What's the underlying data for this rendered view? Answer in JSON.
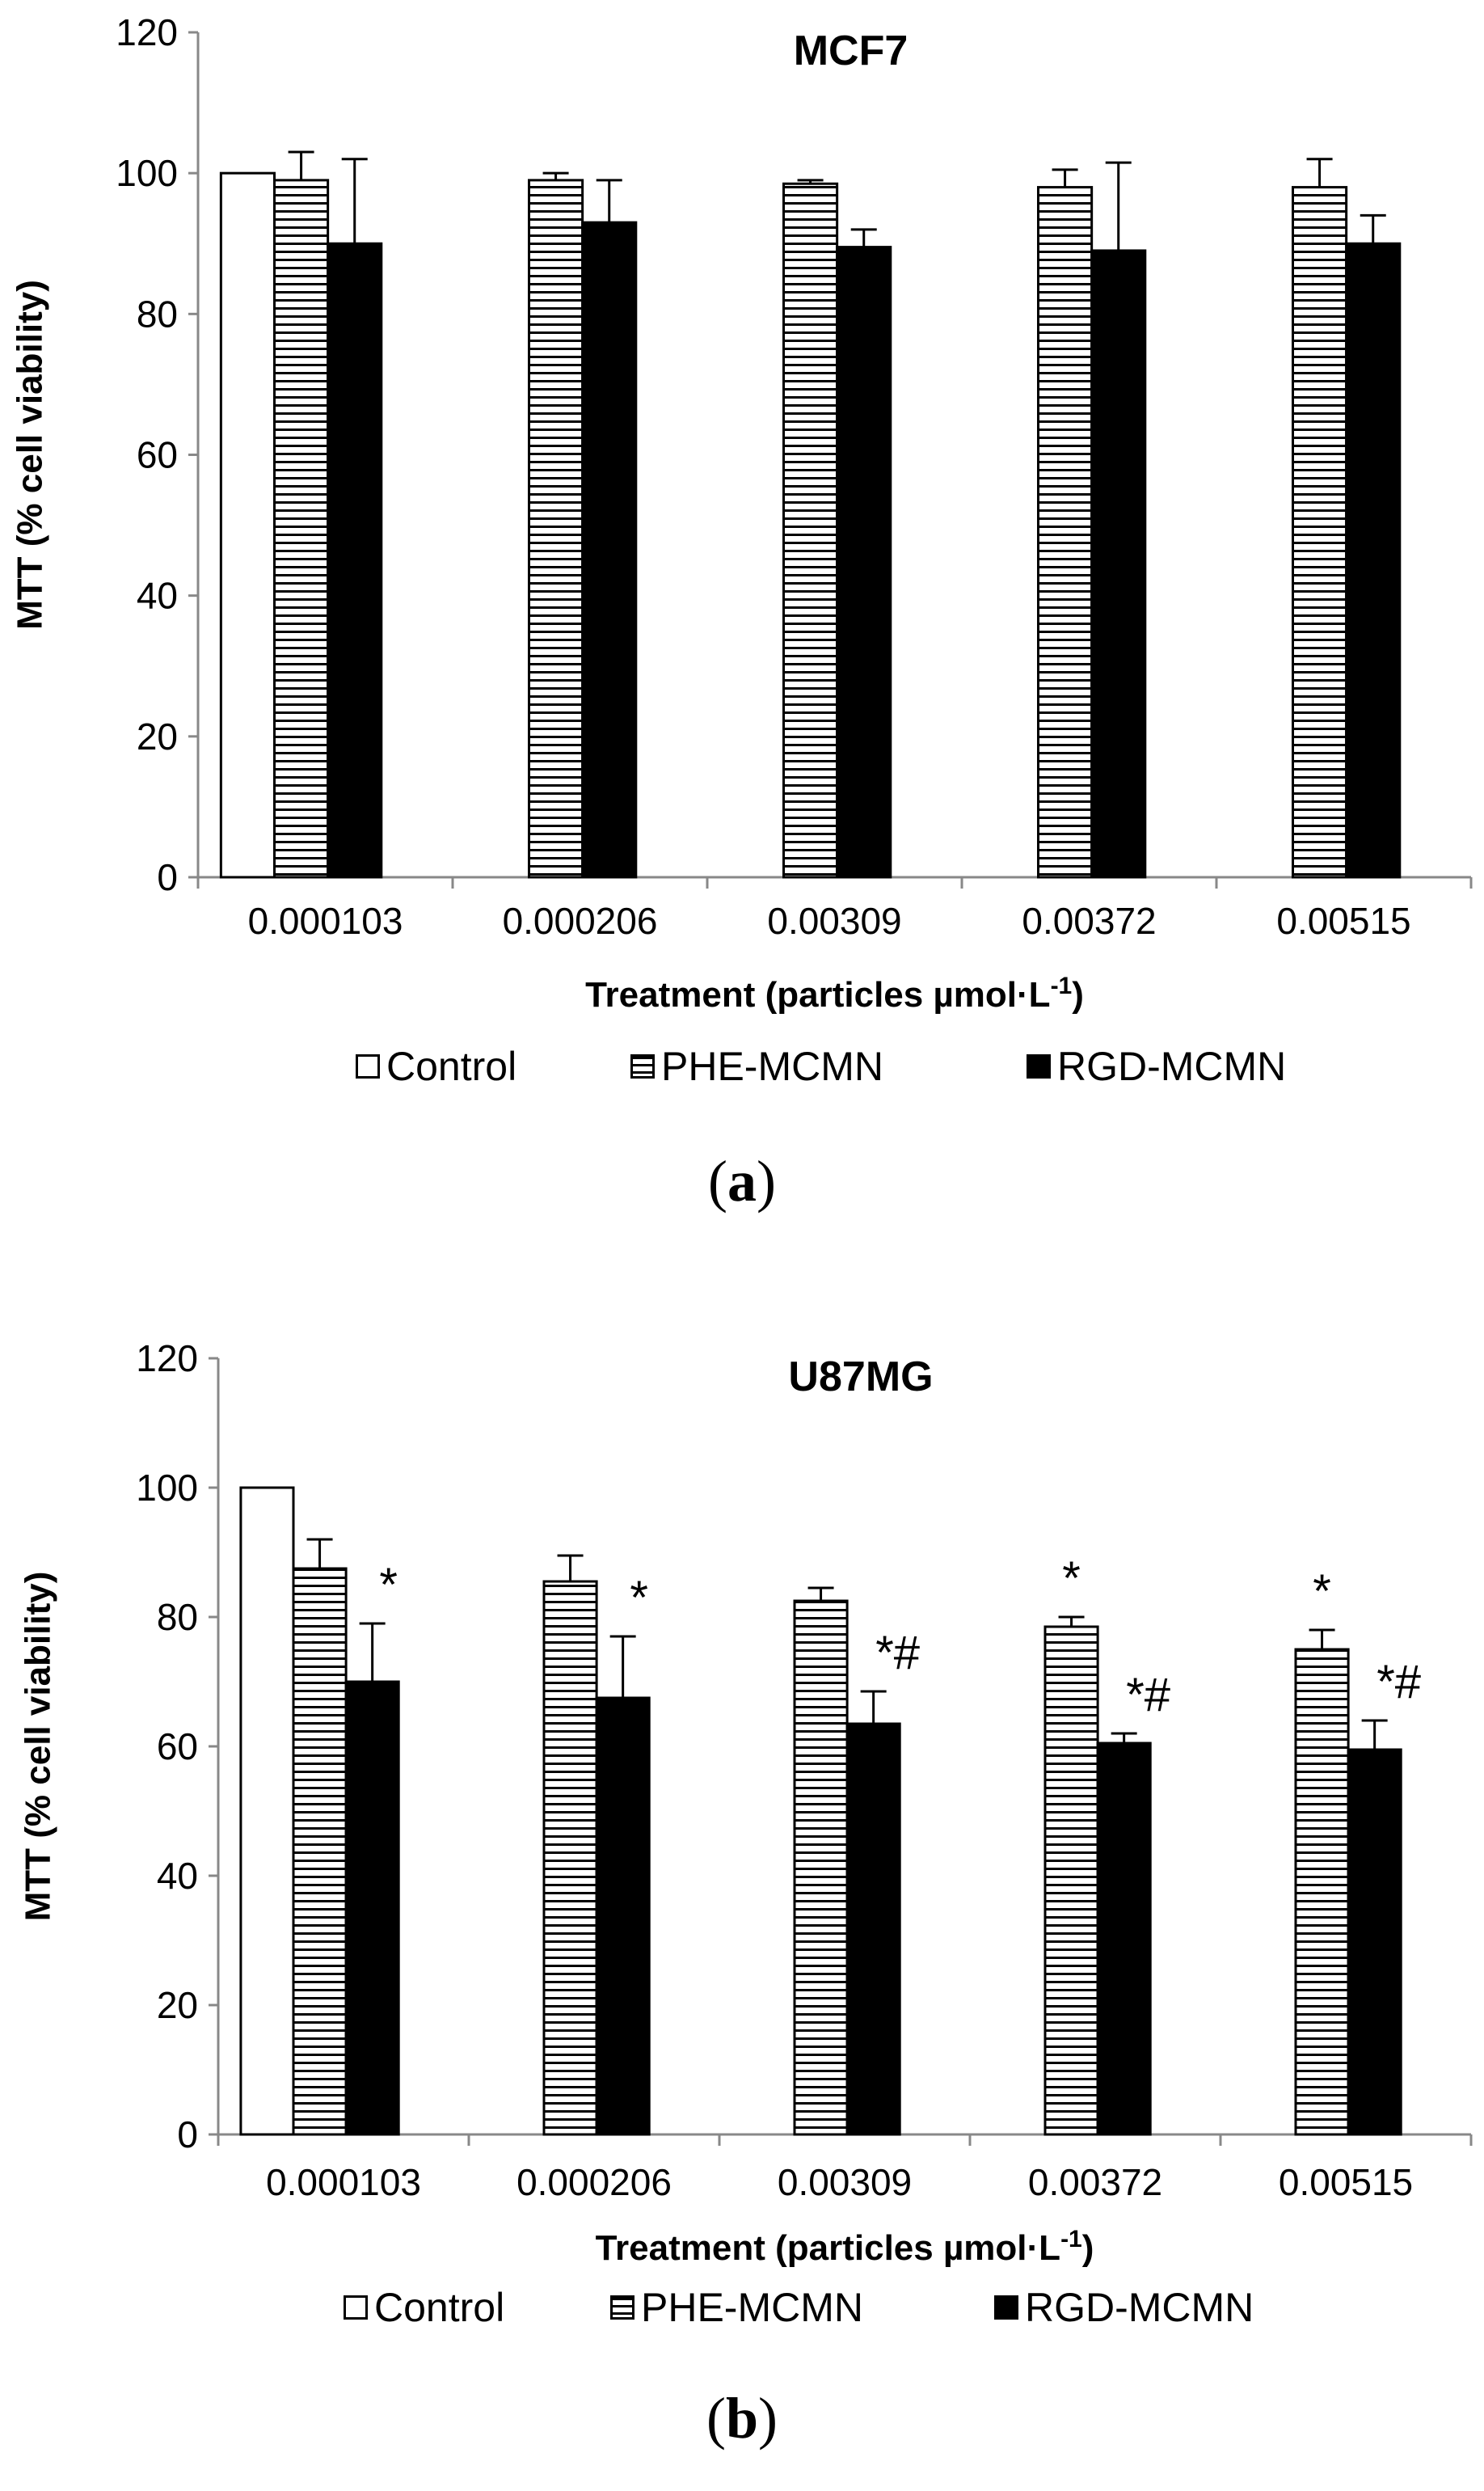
{
  "panels": [
    {
      "caption_letter": "a",
      "chart_data": {
        "type": "bar",
        "title": "MCF7",
        "ylabel": "MTT (% cell viability)",
        "xlabel_main": "Treatment (particles µmol·L",
        "xlabel_sup": "-1",
        "xlabel_end": ")",
        "ylim": [
          0,
          120
        ],
        "yticks": [
          0,
          20,
          40,
          60,
          80,
          100,
          120
        ],
        "categories": [
          "0.000103",
          "0.000206",
          "0.00309",
          "0.00372",
          "0.00515"
        ],
        "series": [
          {
            "name": "Control",
            "values": [
              100,
              null,
              null,
              null,
              null
            ],
            "errors": [
              0,
              null,
              null,
              null,
              null
            ],
            "annotations": [
              "",
              "",
              "",
              "",
              ""
            ]
          },
          {
            "name": "PHE-MCMN",
            "values": [
              99,
              99,
              98.5,
              98,
              98
            ],
            "errors": [
              4,
              1,
              0.5,
              2.5,
              4
            ],
            "annotations": [
              "",
              "",
              "",
              "",
              ""
            ]
          },
          {
            "name": "RGD-MCMN",
            "values": [
              90,
              93,
              89.5,
              89,
              90
            ],
            "errors": [
              12,
              6,
              2.5,
              12.5,
              4
            ],
            "annotations": [
              "",
              "",
              "",
              "",
              ""
            ]
          }
        ],
        "legend": [
          "Control",
          "PHE-MCMN",
          "RGD-MCMN"
        ]
      }
    },
    {
      "caption_letter": "b",
      "chart_data": {
        "type": "bar",
        "title": "U87MG",
        "ylabel": "MTT (% cell viability)",
        "xlabel_main": "Treatment (particles µmol·L",
        "xlabel_sup": "-1",
        "xlabel_end": ")",
        "ylim": [
          0,
          120
        ],
        "yticks": [
          0,
          20,
          40,
          60,
          80,
          100,
          120
        ],
        "categories": [
          "0.000103",
          "0.000206",
          "0.00309",
          "0.00372",
          "0.00515"
        ],
        "series": [
          {
            "name": "Control",
            "values": [
              100,
              null,
              null,
              null,
              null
            ],
            "errors": [
              0,
              null,
              null,
              null,
              null
            ],
            "annotations": [
              "",
              "",
              "",
              "",
              ""
            ]
          },
          {
            "name": "PHE-MCMN",
            "values": [
              87.5,
              85.5,
              82.5,
              78.5,
              75
            ],
            "errors": [
              4.5,
              4,
              2,
              1.5,
              3
            ],
            "annotations": [
              "",
              "",
              "",
              "*",
              "*"
            ]
          },
          {
            "name": "RGD-MCMN",
            "values": [
              70,
              67.5,
              63.5,
              60.5,
              59.5
            ],
            "errors": [
              9,
              9.5,
              5,
              1.5,
              4.5
            ],
            "annotations": [
              "*",
              "*",
              "*#",
              "*#",
              "*#"
            ]
          }
        ],
        "legend": [
          "Control",
          "PHE-MCMN",
          "RGD-MCMN"
        ]
      }
    }
  ]
}
